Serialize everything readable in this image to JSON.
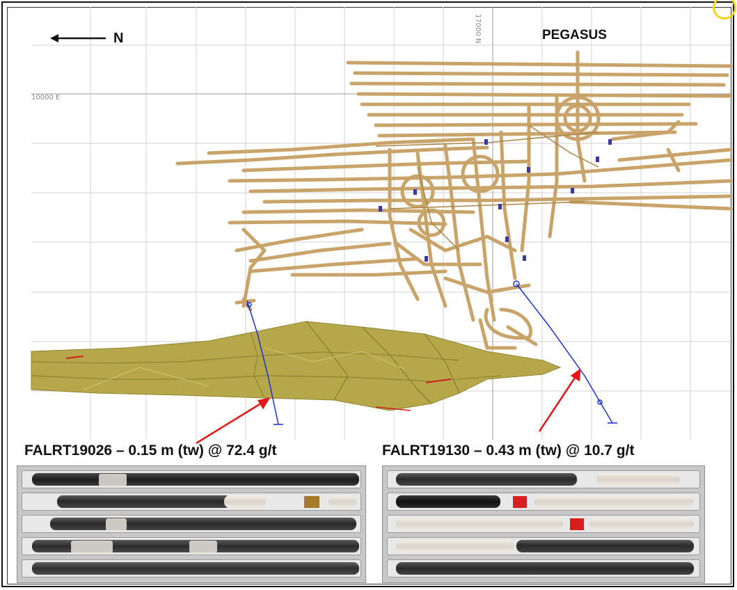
{
  "header": {
    "north_label": "N",
    "mine_label": "PEGASUS"
  },
  "grid": {
    "easting_label": "10000 E",
    "northing_label": "17000 N"
  },
  "intercepts": [
    {
      "label": "FALRT19026 – 0.15 m (tw) @ 72.4 g/t"
    },
    {
      "label": "FALRT19130 – 0.43 m (tw) @ 10.7 g/t"
    }
  ],
  "colors": {
    "workings": "#c9a46a",
    "workings_dark": "#a88446",
    "orebody": "#b5a74a",
    "orebody_dark": "#8f8530",
    "drillhole": "#1a2fd6",
    "arrow": "#e01818",
    "grid": "#d0d0d0"
  },
  "icons": {
    "north_arrow": "arrow-left-icon"
  }
}
